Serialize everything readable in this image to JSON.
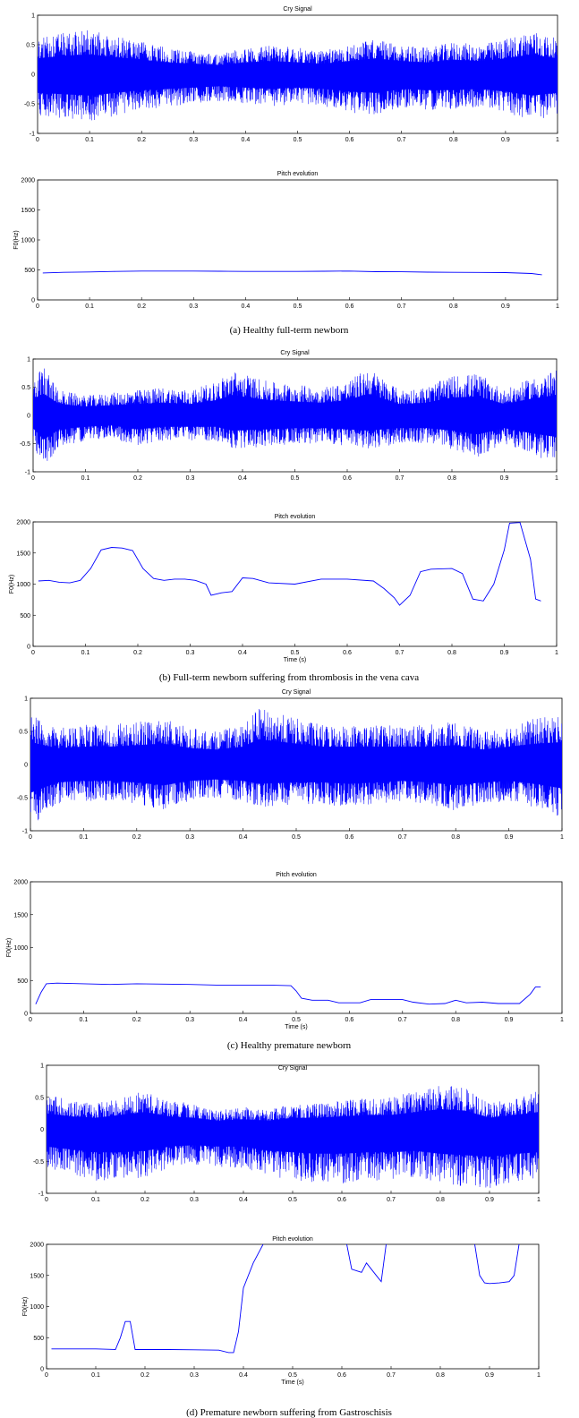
{
  "panels": [
    {
      "caption": "(a) Healthy full-term newborn",
      "cry_title": "Cry Signal",
      "pitch_title": "Pitch evolution",
      "pitch_ylabel": "F0(Hz)",
      "pitch_xlabel": ""
    },
    {
      "caption": "(b) Full-term newborn suffering from thrombosis in the vena cava",
      "cry_title": "Cry Signal",
      "pitch_title": "Pitch evolution",
      "pitch_ylabel": "F0(Hz)",
      "pitch_xlabel": "Time (s)"
    },
    {
      "caption": "(c) Healthy premature newborn",
      "cry_title": "Cry Signal",
      "pitch_title": "Pitch evolution",
      "pitch_ylabel": "F0(Hz)",
      "pitch_xlabel": "Time (s)"
    },
    {
      "caption": "(d) Premature newborn suffering from Gastroschisis",
      "cry_title": "Cry Signal",
      "pitch_title": "Pitch evolution",
      "pitch_ylabel": "F0(Hz)",
      "pitch_xlabel": "Time (s)"
    }
  ],
  "chart_data": [
    {
      "type": "line",
      "title": "Cry Signal",
      "panel": "a",
      "xlim": [
        0,
        1
      ],
      "ylim": [
        -1,
        1
      ],
      "x_ticks": [
        "0",
        "0.1",
        "0.2",
        "0.3",
        "0.4",
        "0.5",
        "0.6",
        "0.7",
        "0.8",
        "0.9",
        "1"
      ],
      "y_ticks": [
        "-1",
        "-0.5",
        "0",
        "0.5",
        "1"
      ],
      "envelope": {
        "x": [
          0,
          0.05,
          0.1,
          0.15,
          0.2,
          0.25,
          0.3,
          0.35,
          0.4,
          0.45,
          0.5,
          0.55,
          0.6,
          0.65,
          0.7,
          0.75,
          0.8,
          0.85,
          0.9,
          0.95,
          1
        ],
        "upper": [
          0.6,
          0.7,
          0.75,
          0.65,
          0.55,
          0.45,
          0.4,
          0.35,
          0.45,
          0.5,
          0.45,
          0.4,
          0.5,
          0.6,
          0.5,
          0.45,
          0.55,
          0.5,
          0.6,
          0.75,
          0.6
        ],
        "lower": [
          -0.7,
          -0.75,
          -0.8,
          -0.7,
          -0.6,
          -0.55,
          -0.5,
          -0.45,
          -0.5,
          -0.55,
          -0.5,
          -0.55,
          -0.65,
          -0.7,
          -0.55,
          -0.6,
          -0.6,
          -0.55,
          -0.65,
          -0.8,
          -0.7
        ]
      }
    },
    {
      "type": "line",
      "title": "Pitch evolution",
      "panel": "a",
      "xlim": [
        0,
        1
      ],
      "ylim": [
        0,
        2000
      ],
      "ylabel": "F0(Hz)",
      "x_ticks": [
        "0",
        "0.1",
        "0.2",
        "0.3",
        "0.4",
        "0.5",
        "0.6",
        "0.7",
        "0.8",
        "0.9",
        "1"
      ],
      "y_ticks": [
        "0",
        "500",
        "1000",
        "1500",
        "2000"
      ],
      "series": [
        {
          "x": [
            0.01,
            0.05,
            0.1,
            0.15,
            0.2,
            0.25,
            0.3,
            0.35,
            0.4,
            0.45,
            0.5,
            0.55,
            0.6,
            0.65,
            0.7,
            0.75,
            0.8,
            0.85,
            0.9,
            0.95,
            0.97
          ],
          "y": [
            450,
            460,
            465,
            475,
            480,
            480,
            480,
            478,
            475,
            475,
            475,
            478,
            480,
            470,
            468,
            462,
            460,
            458,
            455,
            440,
            420
          ]
        }
      ]
    },
    {
      "type": "line",
      "title": "Cry Signal",
      "panel": "b",
      "xlim": [
        0,
        1
      ],
      "ylim": [
        -1,
        1
      ],
      "x_ticks": [
        "0",
        "0.1",
        "0.2",
        "0.3",
        "0.4",
        "0.5",
        "0.6",
        "0.7",
        "0.8",
        "0.9",
        "1"
      ],
      "y_ticks": [
        "-1",
        "-0.5",
        "0",
        "0.5",
        "1"
      ],
      "envelope": {
        "x": [
          0,
          0.02,
          0.05,
          0.1,
          0.15,
          0.2,
          0.25,
          0.3,
          0.35,
          0.38,
          0.45,
          0.5,
          0.55,
          0.6,
          0.64,
          0.7,
          0.75,
          0.8,
          0.85,
          0.9,
          0.95,
          1
        ],
        "upper": [
          0.65,
          0.85,
          0.45,
          0.35,
          0.4,
          0.45,
          0.5,
          0.45,
          0.6,
          0.8,
          0.6,
          0.55,
          0.5,
          0.6,
          0.85,
          0.45,
          0.5,
          0.7,
          0.75,
          0.45,
          0.65,
          0.8
        ],
        "lower": [
          -0.5,
          -0.95,
          -0.55,
          -0.45,
          -0.4,
          -0.55,
          -0.45,
          -0.45,
          -0.45,
          -0.6,
          -0.55,
          -0.5,
          -0.5,
          -0.55,
          -0.6,
          -0.5,
          -0.5,
          -0.6,
          -0.75,
          -0.5,
          -0.7,
          -0.85
        ]
      }
    },
    {
      "type": "line",
      "title": "Pitch evolution",
      "panel": "b",
      "xlim": [
        0,
        1
      ],
      "ylim": [
        0,
        2000
      ],
      "xlabel": "Time (s)",
      "ylabel": "F0(Hz)",
      "x_ticks": [
        "0",
        "0.1",
        "0.2",
        "0.3",
        "0.4",
        "0.5",
        "0.6",
        "0.7",
        "0.8",
        "0.9",
        "1"
      ],
      "y_ticks": [
        "0",
        "500",
        "1000",
        "1500",
        "2000"
      ],
      "series": [
        {
          "x": [
            0.01,
            0.03,
            0.05,
            0.07,
            0.09,
            0.11,
            0.13,
            0.15,
            0.17,
            0.19,
            0.21,
            0.23,
            0.25,
            0.27,
            0.29,
            0.31,
            0.33,
            0.34,
            0.36,
            0.38,
            0.4,
            0.42,
            0.45,
            0.5,
            0.55,
            0.6,
            0.65,
            0.67,
            0.69,
            0.7,
            0.72,
            0.74,
            0.76,
            0.8,
            0.82,
            0.84,
            0.86,
            0.88,
            0.9,
            0.91,
            0.93,
            0.95,
            0.96,
            0.97
          ],
          "y": [
            1050,
            1060,
            1030,
            1020,
            1060,
            1250,
            1550,
            1590,
            1580,
            1540,
            1250,
            1090,
            1060,
            1080,
            1080,
            1060,
            1000,
            820,
            860,
            880,
            1100,
            1090,
            1020,
            1000,
            1080,
            1080,
            1050,
            930,
            780,
            660,
            820,
            1200,
            1240,
            1250,
            1170,
            760,
            730,
            1000,
            1550,
            1980,
            1990,
            1400,
            760,
            730
          ]
        }
      ]
    },
    {
      "type": "line",
      "title": "Cry Signal",
      "panel": "c",
      "xlim": [
        0,
        1
      ],
      "ylim": [
        -1,
        1
      ],
      "x_ticks": [
        "0",
        "0.1",
        "0.2",
        "0.3",
        "0.4",
        "0.5",
        "0.6",
        "0.7",
        "0.8",
        "0.9",
        "1"
      ],
      "y_ticks": [
        "-1",
        "-0.5",
        "0",
        "0.5",
        "1"
      ],
      "envelope": {
        "x": [
          0,
          0.05,
          0.1,
          0.15,
          0.2,
          0.25,
          0.3,
          0.35,
          0.4,
          0.43,
          0.5,
          0.55,
          0.6,
          0.65,
          0.7,
          0.75,
          0.8,
          0.85,
          0.9,
          0.95,
          1
        ],
        "upper": [
          0.75,
          0.55,
          0.6,
          0.6,
          0.65,
          0.7,
          0.55,
          0.5,
          0.6,
          0.85,
          0.7,
          0.6,
          0.6,
          0.6,
          0.6,
          0.6,
          0.65,
          0.5,
          0.6,
          0.7,
          0.75
        ],
        "lower": [
          -0.95,
          -0.6,
          -0.55,
          -0.55,
          -0.6,
          -0.7,
          -0.55,
          -0.5,
          -0.55,
          -0.65,
          -0.6,
          -0.6,
          -0.65,
          -0.6,
          -0.55,
          -0.6,
          -0.7,
          -0.6,
          -0.55,
          -0.65,
          -0.8
        ]
      }
    },
    {
      "type": "line",
      "title": "Pitch evolution",
      "panel": "c",
      "xlim": [
        0,
        1
      ],
      "ylim": [
        0,
        2000
      ],
      "xlabel": "Time (s)",
      "ylabel": "F0(Hz)",
      "x_ticks": [
        "0",
        "0.1",
        "0.2",
        "0.3",
        "0.4",
        "0.5",
        "0.6",
        "0.7",
        "0.8",
        "0.9",
        "1"
      ],
      "y_ticks": [
        "0",
        "500",
        "1000",
        "1500",
        "2000"
      ],
      "series": [
        {
          "x": [
            0.01,
            0.02,
            0.03,
            0.05,
            0.1,
            0.15,
            0.2,
            0.25,
            0.3,
            0.35,
            0.4,
            0.45,
            0.49,
            0.5,
            0.51,
            0.53,
            0.56,
            0.58,
            0.6,
            0.62,
            0.64,
            0.66,
            0.7,
            0.72,
            0.75,
            0.78,
            0.8,
            0.82,
            0.85,
            0.88,
            0.9,
            0.92,
            0.94,
            0.95,
            0.96
          ],
          "y": [
            140,
            320,
            450,
            460,
            450,
            440,
            450,
            445,
            440,
            430,
            430,
            430,
            420,
            340,
            230,
            200,
            200,
            160,
            160,
            160,
            210,
            210,
            210,
            170,
            140,
            150,
            200,
            160,
            170,
            150,
            150,
            150,
            290,
            400,
            400
          ]
        }
      ]
    },
    {
      "type": "line",
      "title": "Cry Signal",
      "panel": "d",
      "xlim": [
        0,
        1
      ],
      "ylim": [
        -1,
        1
      ],
      "x_ticks": [
        "0",
        "0.1",
        "0.2",
        "0.3",
        "0.4",
        "0.5",
        "0.6",
        "0.7",
        "0.8",
        "0.9",
        "1"
      ],
      "y_ticks": [
        "-1",
        "-0.5",
        "0",
        "0.5",
        "1"
      ],
      "envelope": {
        "x": [
          0,
          0.05,
          0.1,
          0.15,
          0.2,
          0.25,
          0.3,
          0.35,
          0.4,
          0.45,
          0.5,
          0.55,
          0.6,
          0.65,
          0.7,
          0.75,
          0.8,
          0.85,
          0.9,
          0.95,
          1
        ],
        "upper": [
          0.55,
          0.45,
          0.4,
          0.5,
          0.6,
          0.45,
          0.4,
          0.3,
          0.35,
          0.3,
          0.4,
          0.4,
          0.45,
          0.5,
          0.5,
          0.6,
          0.7,
          0.65,
          0.4,
          0.5,
          0.6
        ],
        "lower": [
          -0.6,
          -0.7,
          -0.8,
          -0.8,
          -0.75,
          -0.6,
          -0.55,
          -0.6,
          -0.6,
          -0.75,
          -0.8,
          -0.85,
          -0.85,
          -0.8,
          -0.8,
          -0.75,
          -0.85,
          -0.9,
          -0.95,
          -0.85,
          -0.8
        ]
      }
    },
    {
      "type": "line",
      "title": "Pitch evolution",
      "panel": "d",
      "xlim": [
        0,
        1
      ],
      "ylim": [
        0,
        2000
      ],
      "xlabel": "Time (s)",
      "ylabel": "F0(Hz)",
      "x_ticks": [
        "0",
        "0.1",
        "0.2",
        "0.3",
        "0.4",
        "0.5",
        "0.6",
        "0.7",
        "0.8",
        "0.9",
        "1"
      ],
      "y_ticks": [
        "0",
        "500",
        "1000",
        "1500",
        "2000"
      ],
      "series": [
        {
          "x": [
            0.01,
            0.05,
            0.1,
            0.14,
            0.15,
            0.16,
            0.17,
            0.18,
            0.2,
            0.25,
            0.3,
            0.35,
            0.37,
            0.38,
            0.39,
            0.4,
            0.42,
            0.44
          ],
          "y": [
            320,
            320,
            320,
            310,
            500,
            760,
            760,
            310,
            310,
            310,
            305,
            300,
            260,
            260,
            600,
            1300,
            1700,
            2000
          ]
        },
        {
          "x": [
            0.61,
            0.62,
            0.64,
            0.65,
            0.66,
            0.67,
            0.68,
            0.69
          ],
          "y": [
            2000,
            1600,
            1550,
            1700,
            1600,
            1500,
            1400,
            2000
          ]
        },
        {
          "x": [
            0.87,
            0.88,
            0.89,
            0.9,
            0.92,
            0.94,
            0.95,
            0.96
          ],
          "y": [
            2000,
            1500,
            1380,
            1370,
            1380,
            1400,
            1500,
            2000
          ]
        }
      ]
    }
  ]
}
